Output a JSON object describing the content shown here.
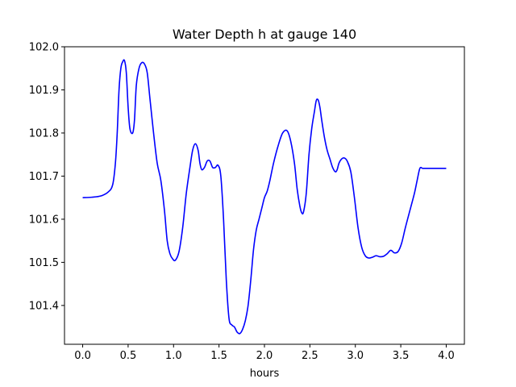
{
  "chart_data": {
    "type": "line",
    "title": "Water Depth h at gauge 140",
    "xlabel": "hours",
    "ylabel": "",
    "xlim": [
      -0.2,
      4.2
    ],
    "ylim": [
      101.31,
      102.0
    ],
    "xticks": [
      0.0,
      0.5,
      1.0,
      1.5,
      2.0,
      2.5,
      3.0,
      3.5,
      4.0
    ],
    "xtick_labels": [
      "0.0",
      "0.5",
      "1.0",
      "1.5",
      "2.0",
      "2.5",
      "3.0",
      "3.5",
      "4.0"
    ],
    "yticks": [
      101.4,
      101.5,
      101.6,
      101.7,
      101.8,
      101.9,
      102.0
    ],
    "ytick_labels": [
      "101.4",
      "101.5",
      "101.6",
      "101.7",
      "101.8",
      "101.9",
      "102.0"
    ],
    "grid": false,
    "legend": "none",
    "series": [
      {
        "color": "#0000ff",
        "x": [
          0.0,
          0.1,
          0.2,
          0.28,
          0.33,
          0.36,
          0.38,
          0.4,
          0.42,
          0.44,
          0.46,
          0.48,
          0.5,
          0.52,
          0.55,
          0.57,
          0.59,
          0.62,
          0.65,
          0.68,
          0.71,
          0.74,
          0.78,
          0.82,
          0.86,
          0.9,
          0.93,
          0.96,
          0.99,
          1.02,
          1.06,
          1.1,
          1.14,
          1.18,
          1.21,
          1.24,
          1.27,
          1.29,
          1.31,
          1.34,
          1.37,
          1.4,
          1.43,
          1.46,
          1.49,
          1.52,
          1.55,
          1.58,
          1.61,
          1.64,
          1.67,
          1.7,
          1.73,
          1.76,
          1.79,
          1.82,
          1.85,
          1.88,
          1.91,
          1.94,
          1.97,
          2.0,
          2.03,
          2.06,
          2.1,
          2.15,
          2.2,
          2.25,
          2.29,
          2.33,
          2.36,
          2.39,
          2.41,
          2.43,
          2.46,
          2.49,
          2.52,
          2.55,
          2.57,
          2.59,
          2.61,
          2.63,
          2.66,
          2.69,
          2.72,
          2.75,
          2.78,
          2.8,
          2.82,
          2.85,
          2.88,
          2.91,
          2.95,
          2.99,
          3.03,
          3.07,
          3.11,
          3.15,
          3.19,
          3.22,
          3.24,
          3.27,
          3.31,
          3.35,
          3.39,
          3.43,
          3.47,
          3.51,
          3.55,
          3.6,
          3.65,
          3.68,
          3.71,
          3.74,
          3.77,
          3.81,
          3.85,
          3.9,
          3.95,
          4.0
        ],
        "y": [
          101.65,
          101.651,
          101.654,
          101.663,
          101.68,
          101.73,
          101.8,
          101.9,
          101.95,
          101.965,
          101.968,
          101.94,
          101.86,
          101.81,
          101.8,
          101.83,
          101.91,
          101.95,
          101.963,
          101.96,
          101.94,
          101.88,
          101.8,
          101.73,
          101.69,
          101.62,
          101.55,
          101.52,
          101.508,
          101.505,
          101.525,
          101.58,
          101.66,
          101.72,
          101.76,
          101.775,
          101.76,
          101.73,
          101.715,
          101.72,
          101.735,
          101.735,
          101.72,
          101.72,
          101.725,
          101.7,
          101.6,
          101.46,
          101.37,
          101.355,
          101.35,
          101.338,
          101.335,
          101.345,
          101.365,
          101.4,
          101.46,
          101.53,
          101.575,
          101.6,
          101.625,
          101.65,
          101.665,
          101.69,
          101.73,
          101.77,
          101.8,
          101.805,
          101.78,
          101.73,
          101.67,
          101.63,
          101.615,
          101.617,
          101.66,
          101.75,
          101.81,
          101.85,
          101.875,
          101.877,
          101.86,
          101.83,
          101.79,
          101.76,
          101.74,
          101.72,
          101.71,
          101.715,
          101.73,
          101.74,
          101.742,
          101.735,
          101.71,
          101.65,
          101.58,
          101.535,
          101.515,
          101.51,
          101.512,
          101.515,
          101.515,
          101.513,
          101.514,
          101.52,
          101.528,
          101.522,
          101.525,
          101.545,
          101.58,
          101.62,
          101.66,
          101.69,
          101.718,
          101.718,
          101.718,
          101.718,
          101.718,
          101.718,
          101.718,
          101.718
        ]
      }
    ]
  }
}
